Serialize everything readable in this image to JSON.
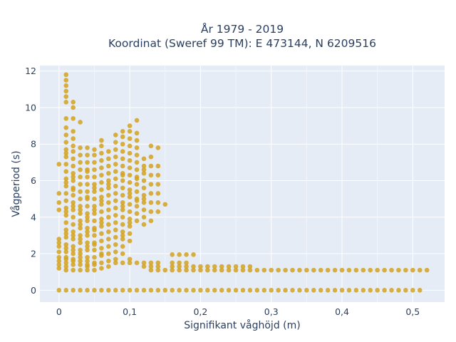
{
  "chart_data": {
    "type": "scatter",
    "title_line1": "År 1979 - 2019",
    "title_line2": "Koordinat (Sweref 99 TM): E 473144, N 6209516",
    "xlabel": "Signifikant våghöjd (m)",
    "ylabel": "Vågperiod (s)",
    "xlim": [
      -0.027,
      0.545
    ],
    "ylim": [
      -0.65,
      12.3
    ],
    "xticks": [
      0,
      0.1,
      0.2,
      0.3,
      0.4,
      0.5
    ],
    "xtick_labels": [
      "0",
      "0,1",
      "0,2",
      "0,3",
      "0,4",
      "0,5"
    ],
    "yticks": [
      0,
      2,
      4,
      6,
      8,
      10,
      12
    ],
    "ytick_labels": [
      "0",
      "2",
      "4",
      "6",
      "8",
      "10",
      "12"
    ],
    "grid": true,
    "marker_color": "#d4a21f",
    "background_color": "#e5ecf6",
    "series": [
      {
        "x": [
          0.0,
          0.01,
          0.02,
          0.03,
          0.04,
          0.05,
          0.06,
          0.07,
          0.08,
          0.09,
          0.1,
          0.11,
          0.12,
          0.13,
          0.14,
          0.15,
          0.16,
          0.17,
          0.18,
          0.19,
          0.2,
          0.21,
          0.22,
          0.23,
          0.24,
          0.25,
          0.26,
          0.27,
          0.28,
          0.29,
          0.3,
          0.31,
          0.32,
          0.33,
          0.34,
          0.35,
          0.36,
          0.37,
          0.38,
          0.39,
          0.4,
          0.41,
          0.42,
          0.43,
          0.44,
          0.45,
          0.46,
          0.47,
          0.48,
          0.49,
          0.5,
          0.51,
          0.0,
          0.0,
          0.0,
          0.0,
          0.0,
          0.0,
          0.0,
          0.0,
          0.0,
          0.0,
          0.0,
          0.0,
          0.01,
          0.01,
          0.01,
          0.01,
          0.01,
          0.01,
          0.01,
          0.01,
          0.01,
          0.01,
          0.01,
          0.01,
          0.01,
          0.01,
          0.01,
          0.01,
          0.01,
          0.01,
          0.01,
          0.01,
          0.01,
          0.01,
          0.01,
          0.01,
          0.01,
          0.01,
          0.01,
          0.01,
          0.01,
          0.01,
          0.01,
          0.01,
          0.01,
          0.01,
          0.01,
          0.02,
          0.02,
          0.02,
          0.02,
          0.02,
          0.02,
          0.02,
          0.02,
          0.02,
          0.02,
          0.02,
          0.02,
          0.02,
          0.02,
          0.02,
          0.02,
          0.02,
          0.02,
          0.02,
          0.02,
          0.02,
          0.02,
          0.02,
          0.02,
          0.02,
          0.02,
          0.02,
          0.02,
          0.02,
          0.02,
          0.03,
          0.03,
          0.03,
          0.03,
          0.03,
          0.03,
          0.03,
          0.03,
          0.03,
          0.03,
          0.03,
          0.03,
          0.03,
          0.03,
          0.03,
          0.03,
          0.03,
          0.03,
          0.03,
          0.03,
          0.03,
          0.03,
          0.03,
          0.03,
          0.04,
          0.04,
          0.04,
          0.04,
          0.04,
          0.04,
          0.04,
          0.04,
          0.04,
          0.04,
          0.04,
          0.04,
          0.04,
          0.04,
          0.04,
          0.04,
          0.04,
          0.04,
          0.04,
          0.04,
          0.04,
          0.04,
          0.04,
          0.04,
          0.04,
          0.05,
          0.05,
          0.05,
          0.05,
          0.05,
          0.05,
          0.05,
          0.05,
          0.05,
          0.05,
          0.05,
          0.05,
          0.05,
          0.05,
          0.05,
          0.05,
          0.05,
          0.05,
          0.05,
          0.05,
          0.05,
          0.05,
          0.05,
          0.06,
          0.06,
          0.06,
          0.06,
          0.06,
          0.06,
          0.06,
          0.06,
          0.06,
          0.06,
          0.06,
          0.06,
          0.06,
          0.06,
          0.06,
          0.06,
          0.06,
          0.06,
          0.06,
          0.06,
          0.06,
          0.06,
          0.07,
          0.07,
          0.07,
          0.07,
          0.07,
          0.07,
          0.07,
          0.07,
          0.07,
          0.07,
          0.07,
          0.07,
          0.07,
          0.07,
          0.07,
          0.07,
          0.07,
          0.07,
          0.08,
          0.08,
          0.08,
          0.08,
          0.08,
          0.08,
          0.08,
          0.08,
          0.08,
          0.08,
          0.08,
          0.08,
          0.08,
          0.08,
          0.08,
          0.08,
          0.08,
          0.08,
          0.08,
          0.09,
          0.09,
          0.09,
          0.09,
          0.09,
          0.09,
          0.09,
          0.09,
          0.09,
          0.09,
          0.09,
          0.09,
          0.09,
          0.09,
          0.09,
          0.09,
          0.09,
          0.09,
          0.09,
          0.09,
          0.09,
          0.09,
          0.1,
          0.1,
          0.1,
          0.1,
          0.1,
          0.1,
          0.1,
          0.1,
          0.1,
          0.1,
          0.1,
          0.1,
          0.1,
          0.1,
          0.1,
          0.1,
          0.1,
          0.1,
          0.1,
          0.1,
          0.1,
          0.11,
          0.11,
          0.11,
          0.11,
          0.11,
          0.11,
          0.11,
          0.11,
          0.11,
          0.11,
          0.11,
          0.11,
          0.11,
          0.11,
          0.11,
          0.11,
          0.11,
          0.12,
          0.12,
          0.12,
          0.12,
          0.12,
          0.12,
          0.12,
          0.12,
          0.12,
          0.12,
          0.12,
          0.12,
          0.12,
          0.12,
          0.13,
          0.13,
          0.13,
          0.13,
          0.13,
          0.13,
          0.13,
          0.13,
          0.13,
          0.13,
          0.13,
          0.13,
          0.14,
          0.14,
          0.14,
          0.14,
          0.14,
          0.14,
          0.14,
          0.14,
          0.14,
          0.14,
          0.15,
          0.15,
          0.16,
          0.16,
          0.16,
          0.17,
          0.17,
          0.17,
          0.18,
          0.18,
          0.18,
          0.19,
          0.19,
          0.2,
          0.2,
          0.21,
          0.21,
          0.22,
          0.22,
          0.23,
          0.23,
          0.24,
          0.24,
          0.25,
          0.25,
          0.26,
          0.26,
          0.27,
          0.27,
          0.28,
          0.29,
          0.3,
          0.31,
          0.32,
          0.33,
          0.34,
          0.35,
          0.36,
          0.37,
          0.38,
          0.39,
          0.4,
          0.41,
          0.42,
          0.43,
          0.44,
          0.45,
          0.46,
          0.47,
          0.48,
          0.49,
          0.5,
          0.51,
          0.52,
          0.16,
          0.17,
          0.18,
          0.19
        ],
        "y": [
          0,
          0,
          0,
          0,
          0,
          0,
          0,
          0,
          0,
          0,
          0,
          0,
          0,
          0,
          0,
          0,
          0,
          0,
          0,
          0,
          0,
          0,
          0,
          0,
          0,
          0,
          0,
          0,
          0,
          0,
          0,
          0,
          0,
          0,
          0,
          0,
          0,
          0,
          0,
          0,
          0,
          0,
          0,
          0,
          0,
          0,
          0,
          0,
          0,
          0,
          0,
          0,
          1.2,
          1.4,
          1.6,
          1.8,
          2.4,
          2.6,
          2.8,
          4.4,
          4.8,
          5.3,
          6.9,
          2.1,
          1.1,
          1.3,
          1.5,
          1.8,
          2.1,
          2.5,
          2.9,
          3.3,
          3.7,
          4.1,
          4.5,
          4.9,
          5.3,
          5.7,
          6.1,
          6.5,
          6.9,
          7.3,
          7.7,
          8.1,
          8.5,
          8.9,
          9.4,
          10.3,
          10.6,
          10.9,
          11.2,
          11.5,
          11.8,
          7.5,
          5.9,
          4.3,
          3.1,
          2.3,
          1.7,
          1.1,
          1.4,
          1.7,
          2.0,
          2.4,
          2.8,
          3.2,
          3.6,
          4.0,
          4.4,
          4.8,
          5.2,
          5.6,
          6.0,
          6.4,
          6.8,
          7.2,
          7.6,
          7.9,
          8.3,
          8.7,
          9.4,
          10.0,
          10.3,
          6.2,
          4.6,
          3.0,
          2.2,
          1.6,
          5.5,
          1.1,
          1.4,
          1.8,
          2.2,
          2.6,
          3.0,
          3.4,
          3.8,
          4.2,
          4.6,
          5.0,
          5.4,
          5.8,
          6.2,
          6.6,
          7.0,
          7.4,
          7.8,
          9.2,
          4.4,
          3.6,
          2.8,
          2.0,
          1.6,
          1.1,
          1.4,
          1.8,
          2.2,
          2.6,
          3.0,
          3.4,
          3.8,
          4.2,
          4.6,
          5.0,
          5.4,
          5.8,
          6.2,
          6.6,
          7.0,
          7.4,
          7.8,
          5.1,
          4.0,
          3.2,
          2.4,
          1.6,
          1.3,
          6.5,
          1.1,
          1.4,
          1.8,
          2.2,
          2.6,
          3.0,
          3.4,
          3.8,
          4.2,
          4.6,
          5.0,
          5.4,
          5.8,
          6.2,
          6.6,
          7.0,
          7.4,
          7.7,
          5.6,
          4.4,
          3.3,
          2.5,
          1.5,
          1.2,
          1.5,
          1.9,
          2.3,
          2.7,
          3.1,
          3.5,
          3.9,
          4.3,
          4.7,
          5.1,
          5.5,
          5.9,
          6.3,
          6.7,
          7.1,
          7.5,
          7.9,
          8.2,
          4.9,
          3.7,
          2.0,
          1.3,
          1.6,
          2.0,
          2.4,
          2.8,
          3.2,
          3.6,
          4.0,
          4.4,
          4.8,
          5.2,
          5.6,
          6.0,
          6.4,
          6.8,
          7.2,
          7.6,
          5.8,
          1.5,
          1.7,
          2.1,
          2.5,
          2.9,
          3.3,
          3.7,
          4.1,
          4.5,
          4.9,
          5.3,
          5.7,
          6.1,
          6.5,
          6.9,
          7.3,
          7.7,
          8.1,
          8.5,
          1.5,
          2.0,
          2.4,
          2.8,
          3.2,
          3.6,
          4.0,
          4.4,
          4.8,
          5.2,
          5.6,
          6.0,
          6.4,
          6.8,
          7.2,
          7.6,
          8.0,
          8.4,
          8.7,
          6.3,
          4.6,
          3.0,
          1.5,
          1.7,
          2.7,
          3.1,
          3.5,
          3.9,
          4.3,
          4.7,
          5.1,
          5.5,
          5.9,
          6.3,
          6.7,
          7.1,
          7.5,
          7.9,
          8.3,
          8.7,
          9.0,
          5.3,
          3.7,
          1.5,
          3.8,
          4.2,
          4.6,
          5.0,
          5.4,
          5.8,
          6.2,
          6.6,
          7.0,
          7.4,
          7.8,
          8.2,
          8.6,
          9.3,
          6.1,
          4.9,
          1.3,
          1.5,
          3.6,
          4.0,
          4.4,
          4.8,
          5.2,
          5.6,
          6.0,
          6.4,
          6.8,
          7.2,
          5.0,
          6.6,
          1.1,
          1.3,
          1.5,
          3.8,
          4.3,
          4.8,
          5.3,
          5.8,
          6.3,
          6.8,
          7.3,
          7.9,
          1.1,
          1.3,
          1.5,
          4.3,
          4.8,
          5.3,
          5.8,
          6.3,
          6.8,
          7.8,
          1.1,
          4.7,
          1.1,
          1.3,
          1.5,
          1.1,
          1.3,
          1.5,
          1.1,
          1.3,
          1.5,
          1.1,
          1.3,
          1.1,
          1.3,
          1.1,
          1.3,
          1.1,
          1.3,
          1.1,
          1.3,
          1.1,
          1.3,
          1.1,
          1.3,
          1.1,
          1.3,
          1.1,
          1.3,
          1.1,
          1.1,
          1.1,
          1.1,
          1.1,
          1.1,
          1.1,
          1.1,
          1.1,
          1.1,
          1.1,
          1.1,
          1.1,
          1.1,
          1.1,
          1.1,
          1.1,
          1.1,
          1.1,
          1.1,
          1.1,
          1.1,
          1.1,
          1.1,
          1.1,
          1.95,
          1.95,
          1.95,
          1.95
        ]
      }
    ]
  }
}
